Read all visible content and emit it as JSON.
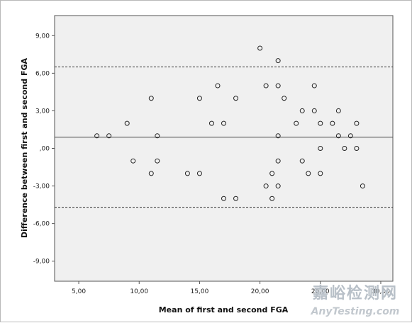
{
  "chart_data": {
    "type": "scatter",
    "title": "",
    "xlabel": "Mean of first and second FGA",
    "ylabel": "Difference between first and second FGA",
    "xlim": [
      3.0,
      31.0
    ],
    "ylim": [
      -10.6,
      10.6
    ],
    "x_ticks": [
      "5,00",
      "10,00",
      "15,00",
      "20,00",
      "25,00",
      "30,00"
    ],
    "y_ticks": [
      "9,00",
      "6,00",
      "3,00",
      ",00",
      "-3,00",
      "-6,00",
      "-9,00"
    ],
    "grid": false,
    "background_color": "#f0f0f0",
    "marker": "open-circle",
    "reference_lines": {
      "mean_difference": 0.9,
      "upper_limit": 6.5,
      "lower_limit": -4.7
    },
    "points": [
      {
        "x": 6.5,
        "y": 1
      },
      {
        "x": 7.5,
        "y": 1
      },
      {
        "x": 9.0,
        "y": 2
      },
      {
        "x": 9.5,
        "y": -1
      },
      {
        "x": 11.0,
        "y": 4
      },
      {
        "x": 11.0,
        "y": -2
      },
      {
        "x": 11.5,
        "y": 1
      },
      {
        "x": 11.5,
        "y": -1
      },
      {
        "x": 14.0,
        "y": -2
      },
      {
        "x": 15.0,
        "y": 4
      },
      {
        "x": 15.0,
        "y": -2
      },
      {
        "x": 16.0,
        "y": 2
      },
      {
        "x": 16.5,
        "y": 5
      },
      {
        "x": 17.0,
        "y": 2
      },
      {
        "x": 17.0,
        "y": -4
      },
      {
        "x": 18.0,
        "y": 4
      },
      {
        "x": 18.0,
        "y": -4
      },
      {
        "x": 20.0,
        "y": 8
      },
      {
        "x": 20.5,
        "y": 5
      },
      {
        "x": 20.5,
        "y": -3
      },
      {
        "x": 21.0,
        "y": -2
      },
      {
        "x": 21.0,
        "y": -4
      },
      {
        "x": 21.5,
        "y": 7
      },
      {
        "x": 21.5,
        "y": 5
      },
      {
        "x": 21.5,
        "y": 1
      },
      {
        "x": 21.5,
        "y": -1
      },
      {
        "x": 21.5,
        "y": -3
      },
      {
        "x": 22.0,
        "y": 4
      },
      {
        "x": 23.0,
        "y": 2
      },
      {
        "x": 23.5,
        "y": 3
      },
      {
        "x": 23.5,
        "y": -1
      },
      {
        "x": 24.0,
        "y": -2
      },
      {
        "x": 24.5,
        "y": 5
      },
      {
        "x": 24.5,
        "y": 3
      },
      {
        "x": 25.0,
        "y": 2
      },
      {
        "x": 25.0,
        "y": 0
      },
      {
        "x": 25.0,
        "y": -2
      },
      {
        "x": 26.0,
        "y": 2
      },
      {
        "x": 26.5,
        "y": 3
      },
      {
        "x": 26.5,
        "y": 1
      },
      {
        "x": 27.0,
        "y": 0
      },
      {
        "x": 27.5,
        "y": 1
      },
      {
        "x": 28.0,
        "y": 2
      },
      {
        "x": 28.0,
        "y": 0
      },
      {
        "x": 28.5,
        "y": -3
      }
    ]
  },
  "watermark": {
    "cn_text": "嘉峪检测网",
    "en_text": "AnyTesting.com",
    "color": "#b8c0c8"
  }
}
